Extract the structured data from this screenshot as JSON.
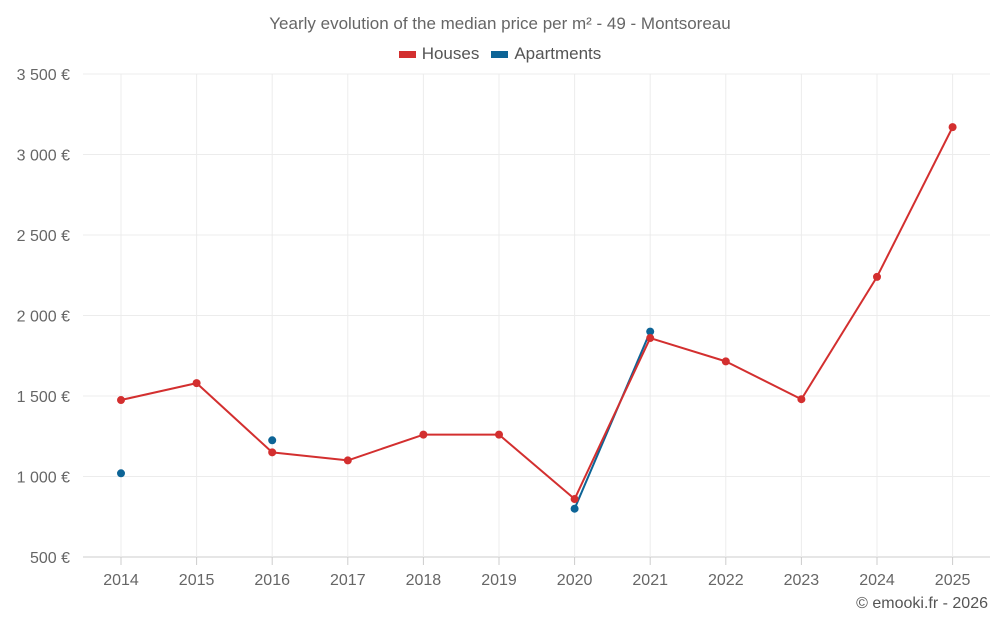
{
  "chart_data": {
    "type": "line",
    "title": "Yearly evolution of the median price per m² - 49 - Montsoreau",
    "xlabel": "",
    "ylabel": "",
    "categories": [
      "2014",
      "2015",
      "2016",
      "2017",
      "2018",
      "2019",
      "2020",
      "2021",
      "2022",
      "2023",
      "2024",
      "2025"
    ],
    "y_ticks": [
      500,
      1000,
      1500,
      2000,
      2500,
      3000,
      3500
    ],
    "y_tick_labels": [
      "500 €",
      "1 000 €",
      "1 500 €",
      "2 000 €",
      "2 500 €",
      "3 000 €",
      "3 500 €"
    ],
    "ylim": [
      500,
      3500
    ],
    "grid": true,
    "legend_position": "top-center",
    "series": [
      {
        "name": "Houses",
        "color": "#d32f2f",
        "values": [
          1475,
          1580,
          1150,
          1100,
          1260,
          1260,
          860,
          1860,
          1715,
          1480,
          2240,
          3170
        ]
      },
      {
        "name": "Apartments",
        "color": "#0d6496",
        "values": [
          1020,
          null,
          1225,
          null,
          null,
          null,
          800,
          1900,
          null,
          null,
          null,
          null
        ]
      }
    ]
  },
  "credit": "© emooki.fr - 2026",
  "colors": {
    "grid": "#ececec",
    "axis": "#cccccc",
    "text": "#666666"
  }
}
